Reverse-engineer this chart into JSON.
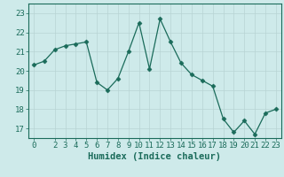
{
  "x": [
    0,
    1,
    2,
    3,
    4,
    5,
    6,
    7,
    8,
    9,
    10,
    11,
    12,
    13,
    14,
    15,
    16,
    17,
    18,
    19,
    20,
    21,
    22,
    23
  ],
  "y": [
    20.3,
    20.5,
    21.1,
    21.3,
    21.4,
    21.5,
    19.4,
    19.0,
    19.6,
    21.0,
    22.5,
    20.1,
    22.7,
    21.5,
    20.4,
    19.8,
    19.5,
    19.2,
    17.5,
    16.8,
    17.4,
    16.7,
    17.8,
    18.0
  ],
  "line_color": "#1a6b5a",
  "marker": "D",
  "marker_size": 2.5,
  "bg_color": "#ceeaea",
  "grid_color": "#b8d4d4",
  "axes_color": "#1a6b5a",
  "xlabel": "Humidex (Indice chaleur)",
  "ylim": [
    16.5,
    23.5
  ],
  "xlim": [
    -0.5,
    23.5
  ],
  "yticks": [
    17,
    18,
    19,
    20,
    21,
    22,
    23
  ],
  "xticks": [
    0,
    2,
    3,
    4,
    5,
    6,
    7,
    8,
    9,
    10,
    11,
    12,
    13,
    14,
    15,
    16,
    17,
    18,
    19,
    20,
    21,
    22,
    23
  ],
  "font_color": "#1a6b5a",
  "tick_fontsize": 6.5,
  "label_fontsize": 7.5
}
